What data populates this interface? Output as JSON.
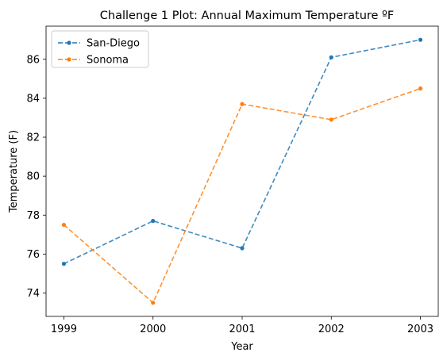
{
  "chart_data": {
    "type": "line",
    "title": "Challenge 1 Plot: Annual Maximum Temperature ºF",
    "xlabel": "Year",
    "ylabel": "Temperature (F)",
    "x": [
      1999,
      2000,
      2001,
      2002,
      2003
    ],
    "x_tick_labels": [
      "1999",
      "2000",
      "2001",
      "2002",
      "2003"
    ],
    "xlim": [
      1998.8,
      2003.2
    ],
    "ylim": [
      72.8,
      87.7
    ],
    "y_ticks": [
      74,
      76,
      78,
      80,
      82,
      84,
      86
    ],
    "grid": false,
    "legend_position": "top-left",
    "series": [
      {
        "name": "San-Diego",
        "values": [
          75.5,
          77.7,
          76.3,
          86.1,
          87.0
        ],
        "color": "#1f77b4",
        "line_style": "dashed",
        "marker": "dot"
      },
      {
        "name": "Sonoma",
        "values": [
          77.5,
          73.5,
          83.7,
          82.9,
          84.5
        ],
        "color": "#ff7f0e",
        "line_style": "dashed",
        "marker": "dot"
      }
    ]
  }
}
